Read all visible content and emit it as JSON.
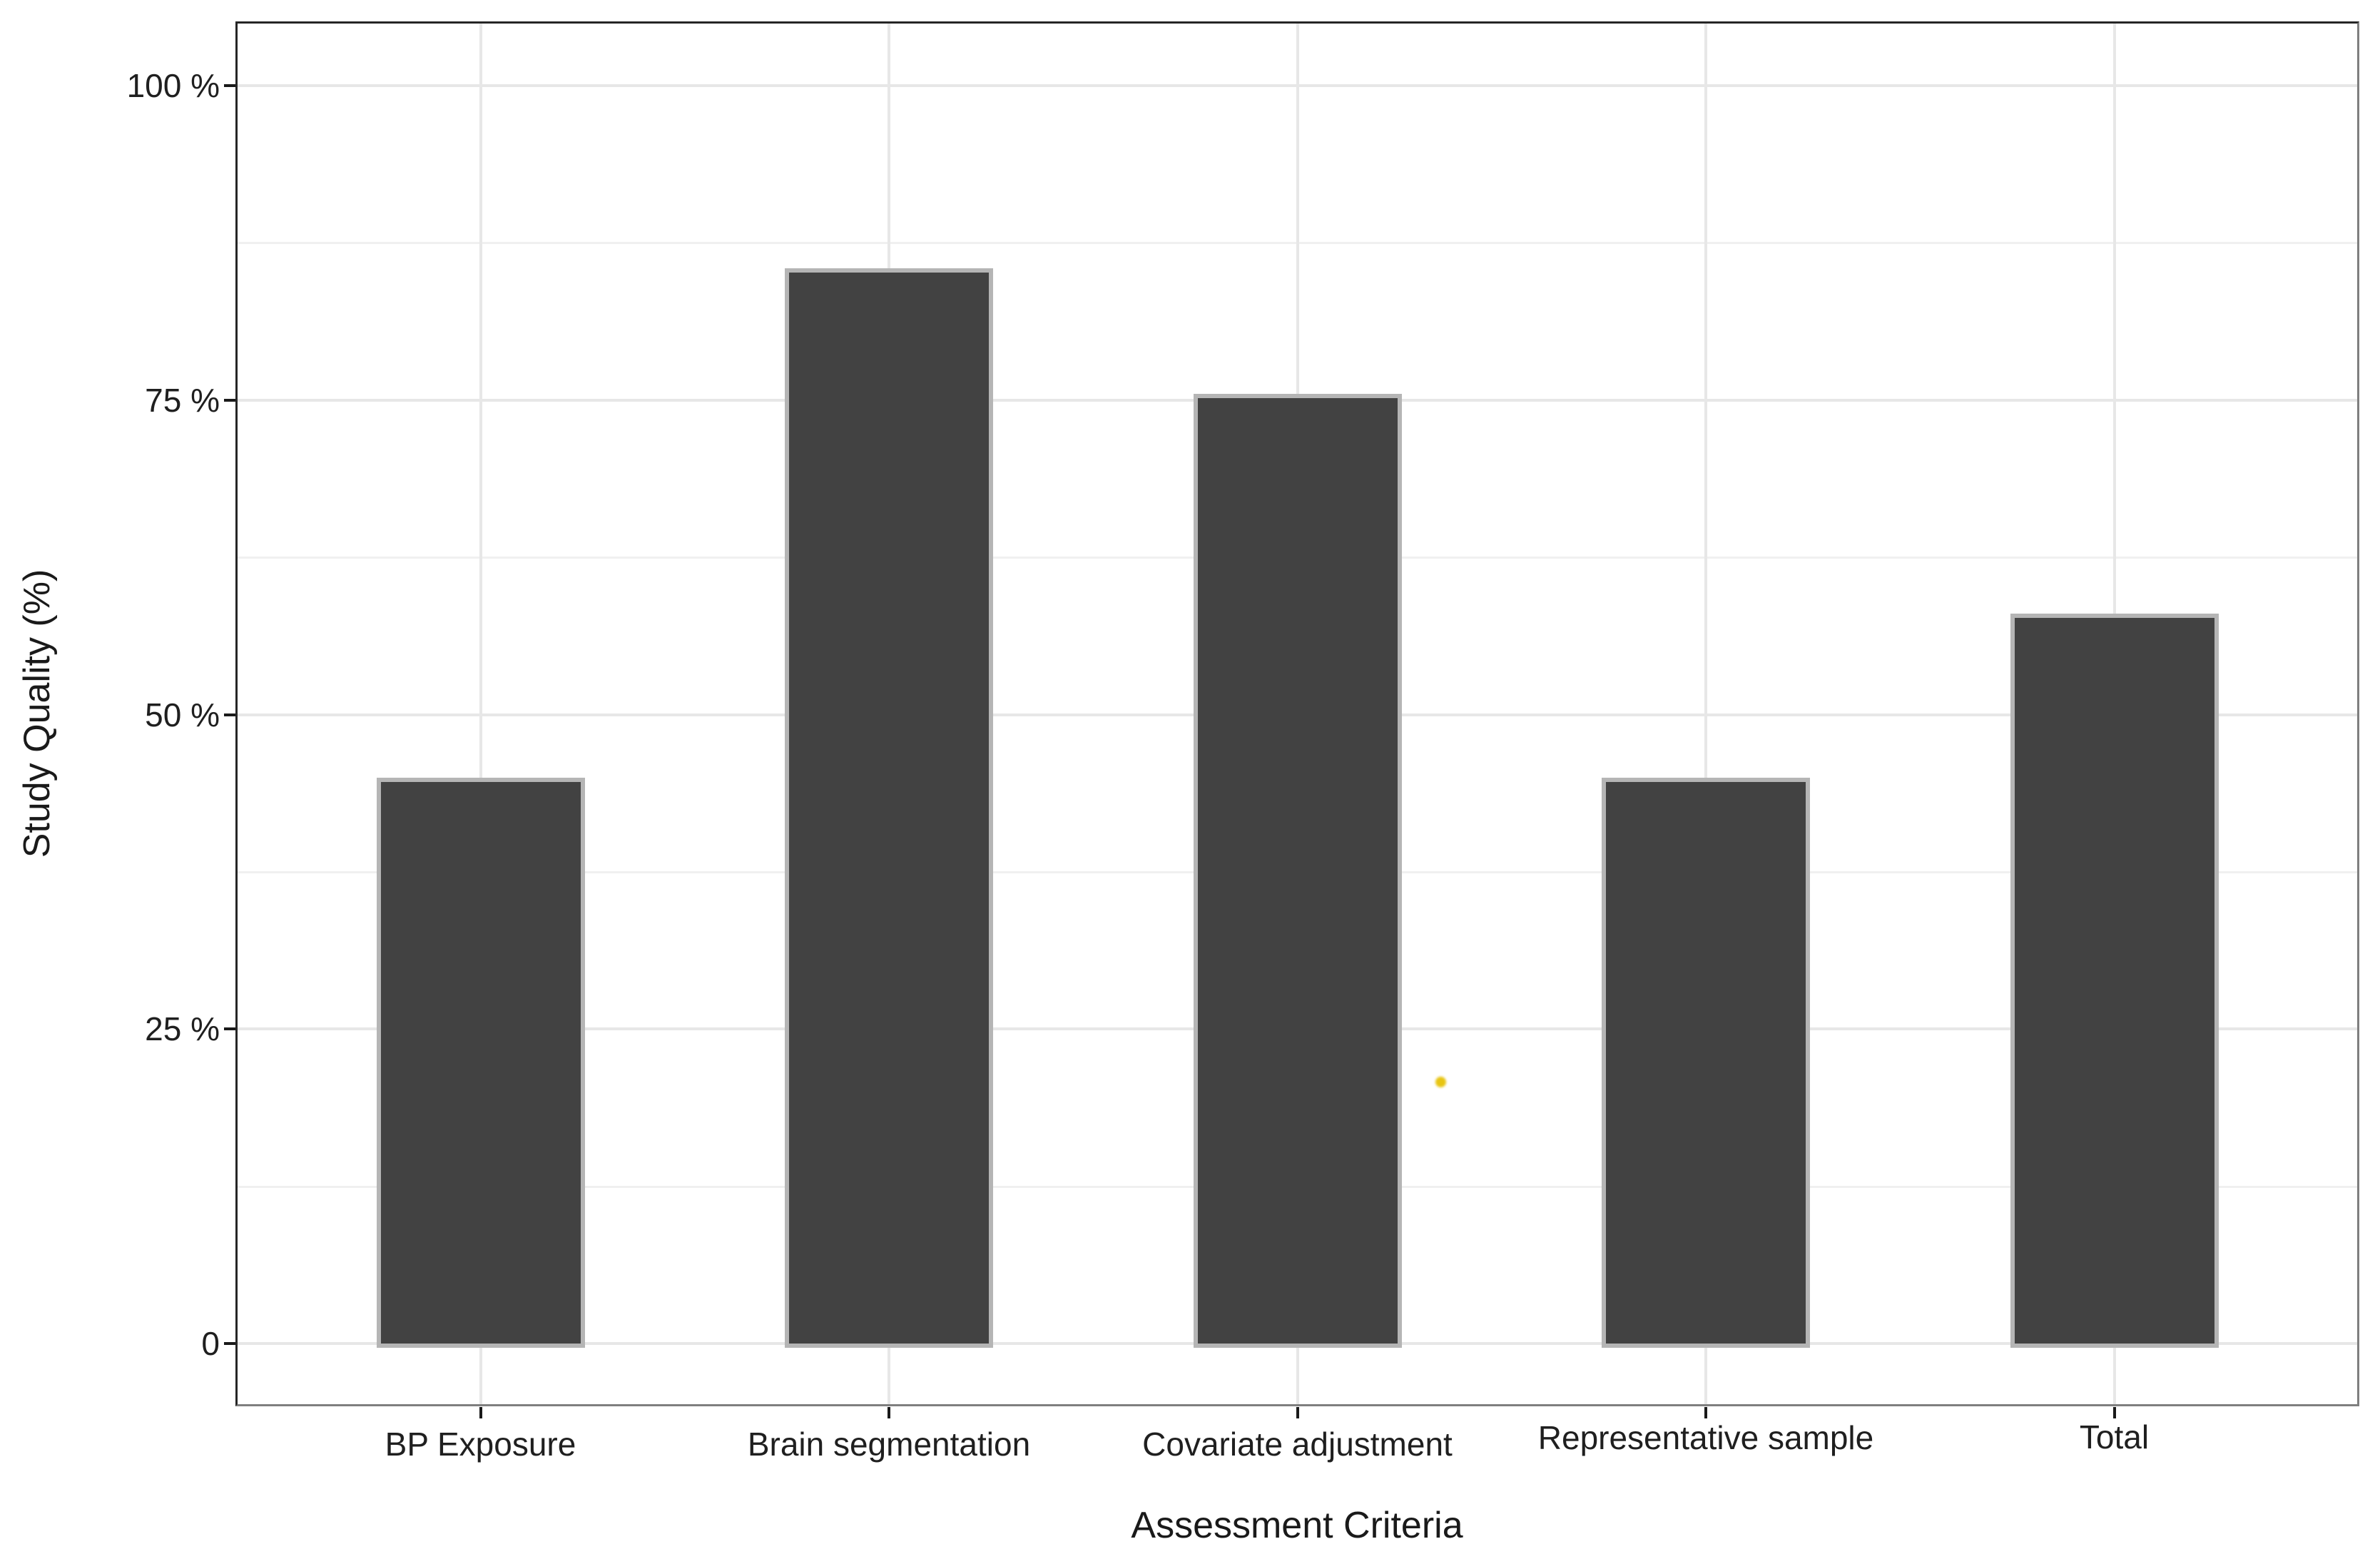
{
  "chart_data": {
    "type": "bar",
    "title": "",
    "categories": [
      "BP Exposure",
      "Brain segmentation",
      "Covariate adjustment",
      "Representative sample",
      "Total"
    ],
    "values": [
      45,
      85.5,
      75.5,
      45,
      58
    ],
    "xlabel": "Assessment Criteria",
    "ylabel": "Study Quality (%)",
    "ylim": [
      0,
      100
    ],
    "y_ticks": [
      {
        "value": 100,
        "label": "100 %"
      },
      {
        "value": 75,
        "label": "75 %"
      },
      {
        "value": 50,
        "label": "50 %"
      },
      {
        "value": 25,
        "label": "25 %"
      },
      {
        "value": 0,
        "label": "0"
      }
    ],
    "y_minor_gridlines": [
      87.5,
      62.5,
      37.5,
      12.5
    ],
    "grid": "horizontal major+minor, vertical major at category centers",
    "legend_position": "none",
    "bar_fill_color": "#424242",
    "bar_border_color": "#b5b5b5",
    "gridline_color": "#e7e7e7",
    "minor_gridline_color": "#f0f0f0",
    "tick_color": "#1a1a1a",
    "text_color": "#1f1f1f",
    "background_color": "#ffffff",
    "annotation_marker": {
      "shape": "dot",
      "color": "#e8c512",
      "x_category_units": 3.35,
      "y_value_pct": 20.8,
      "description": "small stray yellow dot between Covariate adjustment and Representative sample bars"
    }
  }
}
